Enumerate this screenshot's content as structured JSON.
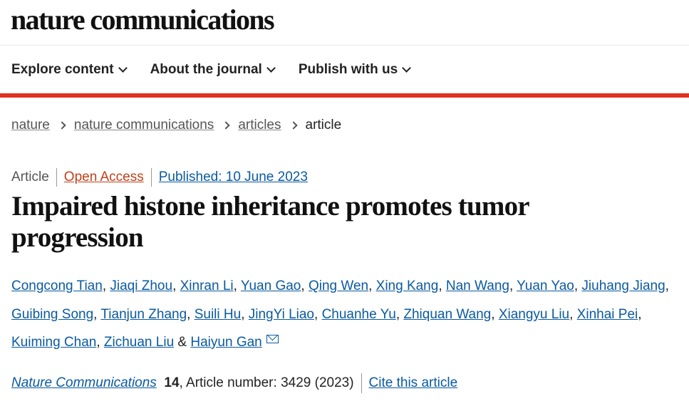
{
  "logo": "nature communications",
  "nav": [
    "Explore content",
    "About the journal",
    "Publish with us"
  ],
  "breadcrumb": {
    "items": [
      "nature",
      "nature communications",
      "articles"
    ],
    "current": "article"
  },
  "meta": {
    "type": "Article",
    "access": "Open Access",
    "published": "Published: 10 June 2023"
  },
  "title": "Impaired histone inheritance promotes tumor progression",
  "authors": [
    "Congcong Tian",
    "Jiaqi Zhou",
    "Xinran Li",
    "Yuan Gao",
    "Qing Wen",
    "Xing Kang",
    "Nan Wang",
    "Yuan Yao",
    "Jiuhang Jiang",
    "Guibing Song",
    "Tianjun Zhang",
    "Suili Hu",
    "JingYi Liao",
    "Chuanhe Yu",
    "Zhiquan Wang",
    "Xiangyu Liu",
    "Xinhai Pei",
    "Kuiming Chan",
    "Zichuan Liu",
    "Haiyun Gan"
  ],
  "authors_conjunction": "&",
  "citation": {
    "journal": "Nature Communications",
    "volume": "14",
    "rest": ", Article number: 3429 (2023)",
    "cite_label": "Cite this article"
  },
  "colors": {
    "accent_bar": "#e0301e",
    "link": "#0a5aa0",
    "open_access": "#c0401a"
  }
}
